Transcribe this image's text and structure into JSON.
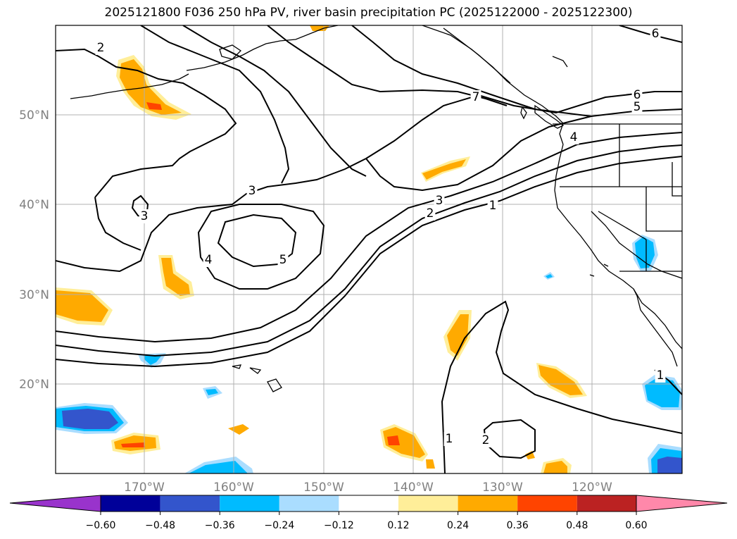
{
  "title": "2025121800 F036 250 hPa PV, river basin precipitation PC (2025122000 - 2025122300)",
  "map": {
    "lat_labels": [
      "50°N",
      "40°N",
      "30°N",
      "20°N"
    ],
    "lon_labels": [
      "170°W",
      "160°W",
      "150°W",
      "140°W",
      "130°W",
      "120°W"
    ],
    "contour_labels": [
      "2",
      "7",
      "6",
      "6",
      "5",
      "4",
      "3",
      "3",
      "3",
      "2",
      "1",
      "4",
      "5",
      "1",
      "2",
      "1"
    ]
  },
  "colorbar": {
    "colors": [
      "#9933cc",
      "#000099",
      "#3355cc",
      "#00bbff",
      "#aaddff",
      "#ffffff",
      "#ffee99",
      "#ffaa00",
      "#ff4400",
      "#bb2222",
      "#ff88aa"
    ],
    "tick_labels": [
      "−0.60",
      "−0.48",
      "−0.36",
      "−0.24",
      "−0.12",
      "0.12",
      "0.24",
      "0.36",
      "0.48",
      "0.60"
    ]
  }
}
